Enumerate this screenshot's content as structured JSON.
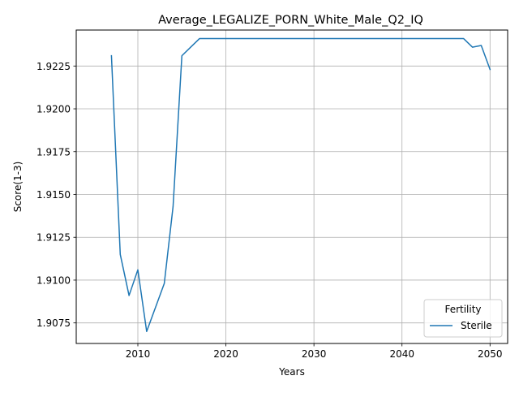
{
  "chart_data": {
    "type": "line",
    "title": "Average_LEGALIZE_PORN_White_Male_Q2_IQ",
    "xlabel": "Years",
    "ylabel": "Score(1-3)",
    "xlim": [
      2003,
      2052
    ],
    "ylim": [
      1.9063,
      1.9246
    ],
    "xticks": [
      2010,
      2020,
      2030,
      2040,
      2050
    ],
    "xtick_labels": [
      "2010",
      "2020",
      "2030",
      "2040",
      "2050"
    ],
    "yticks": [
      1.9075,
      1.91,
      1.9125,
      1.915,
      1.9175,
      1.92,
      1.9225
    ],
    "ytick_labels": [
      "1.9075",
      "1.9100",
      "1.9125",
      "1.9150",
      "1.9175",
      "1.9200",
      "1.9225"
    ],
    "grid": true,
    "legend": {
      "title": "Fertility",
      "location": "lower-right"
    },
    "series": [
      {
        "name": "Sterile",
        "color": "#1f77b4",
        "x": [
          2007,
          2008,
          2009,
          2010,
          2011,
          2012,
          2013,
          2014,
          2015,
          2016,
          2017,
          2018,
          2019,
          2020,
          2021,
          2022,
          2023,
          2024,
          2025,
          2026,
          2027,
          2028,
          2029,
          2030,
          2031,
          2032,
          2033,
          2034,
          2035,
          2036,
          2037,
          2038,
          2039,
          2040,
          2041,
          2042,
          2043,
          2044,
          2045,
          2046,
          2047,
          2048,
          2049,
          2050
        ],
        "y": [
          1.9231,
          1.9115,
          1.9091,
          1.9106,
          1.907,
          1.9084,
          1.9098,
          1.9143,
          1.9231,
          1.9236,
          1.9241,
          1.9241,
          1.9241,
          1.9241,
          1.9241,
          1.9241,
          1.9241,
          1.9241,
          1.9241,
          1.9241,
          1.9241,
          1.9241,
          1.9241,
          1.9241,
          1.9241,
          1.9241,
          1.9241,
          1.9241,
          1.9241,
          1.9241,
          1.9241,
          1.9241,
          1.9241,
          1.9241,
          1.9241,
          1.9241,
          1.9241,
          1.9241,
          1.9241,
          1.9241,
          1.9241,
          1.9236,
          1.9237,
          1.9223
        ]
      }
    ]
  }
}
